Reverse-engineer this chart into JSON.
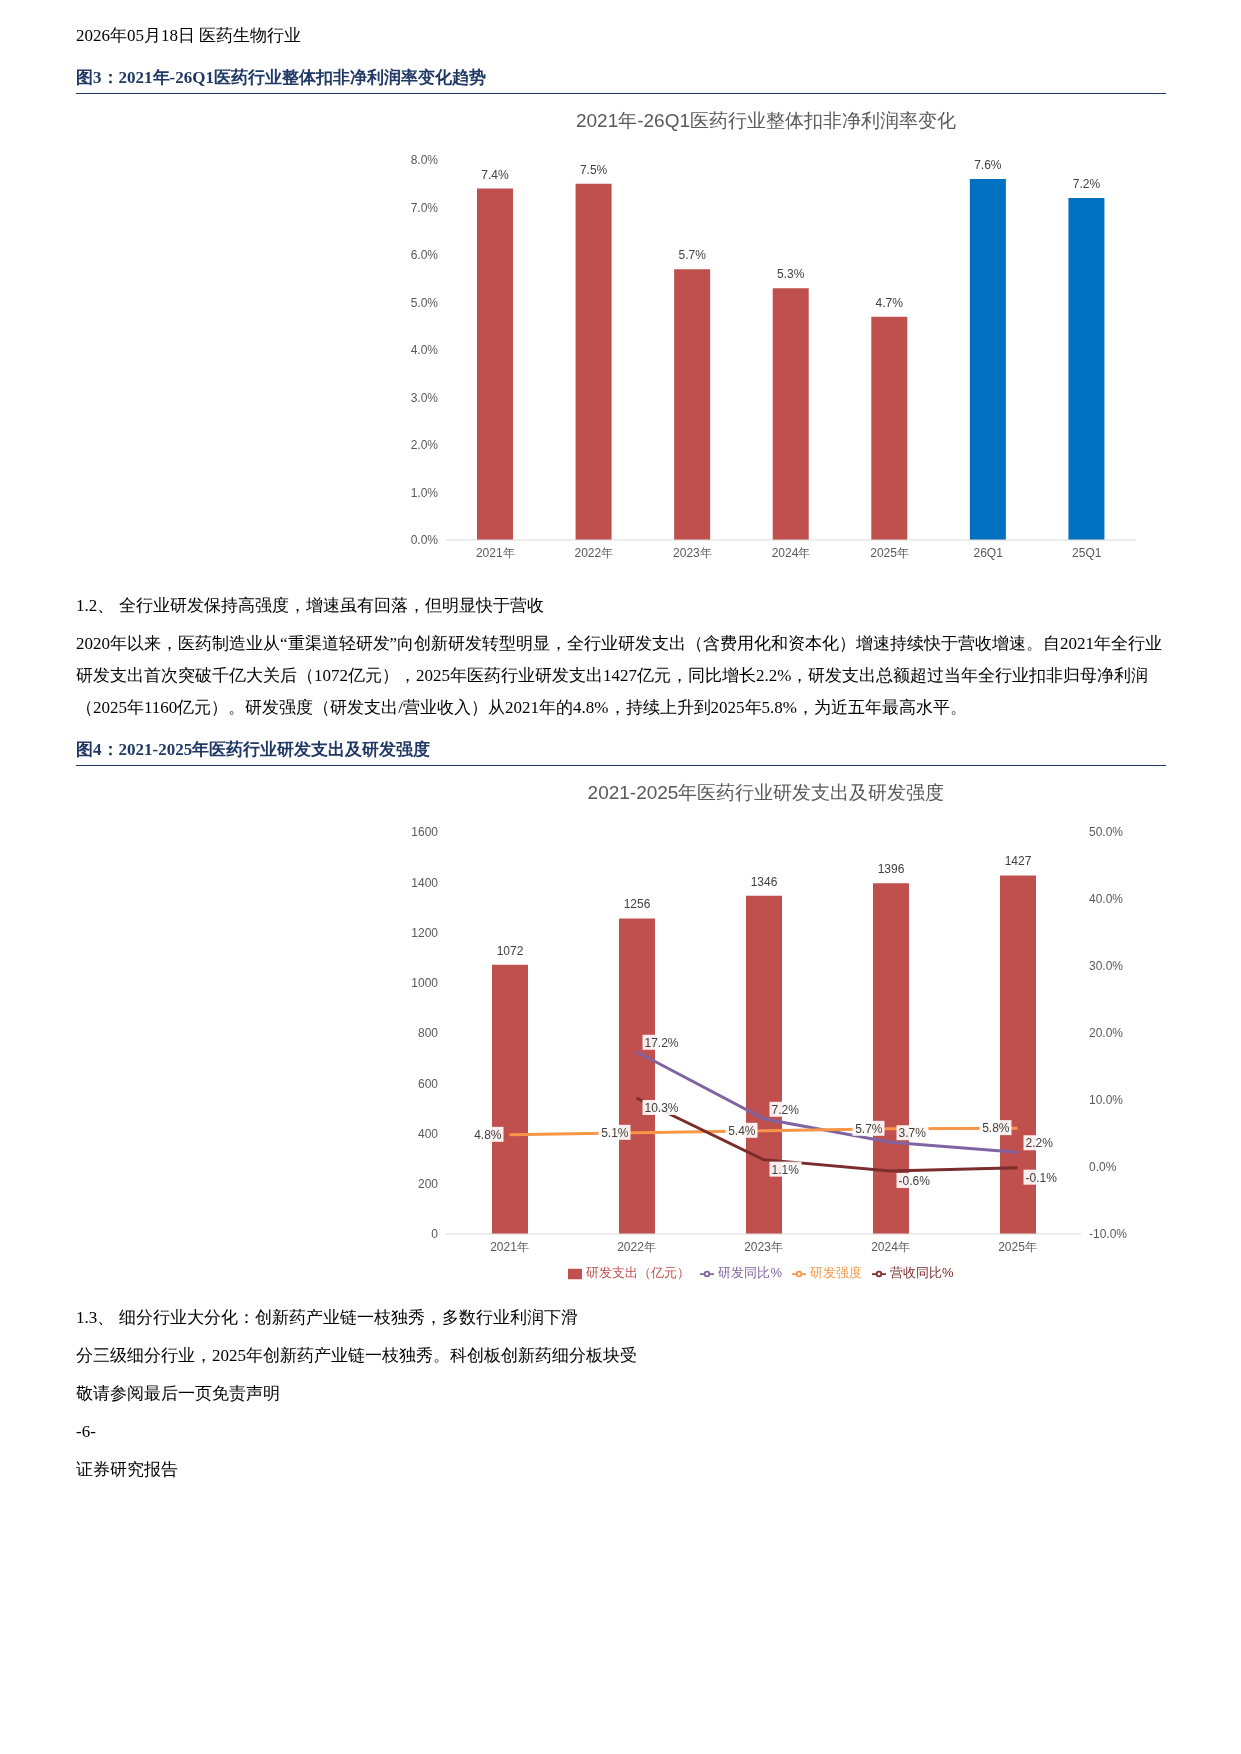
{
  "chart_data": [
    {
      "type": "other",
      "annotations": [
        "2026年05月18日 医药生物行业"
      ]
    },
    {
      "type": "bar",
      "title": "2021年-26Q1医药行业整体扣非净利润率变化",
      "annotations": [
        "图3：2021年-26Q1医药行业整体扣非净利润率变化趋势"
      ],
      "categories": [
        "2021年",
        "2022年",
        "2023年",
        "2024年",
        "2025年",
        "26Q1",
        "25Q1"
      ],
      "series": [
        {
          "values": [
            7.4,
            7.5,
            5.7,
            5.3,
            4.7,
            7.6,
            7.2
          ],
          "colors": [
            "#c0504d",
            "#c0504d",
            "#c0504d",
            "#c0504d",
            "#c0504d",
            "#0070c0",
            "#0070c0"
          ],
          "value_labels": [
            "7.4%",
            "7.5%",
            "5.7%",
            "5.3%",
            "4.7%",
            "7.6%",
            "7.2%"
          ]
        }
      ],
      "ylim": [
        0,
        8
      ],
      "yticks": [
        {
          "value": 0,
          "label": "0.0%"
        },
        {
          "value": 1,
          "label": "1.0%"
        },
        {
          "value": 2,
          "label": "2.0%"
        },
        {
          "value": 3,
          "label": "3.0%"
        },
        {
          "value": 4,
          "label": "4.0%"
        },
        {
          "value": 5,
          "label": "5.0%"
        },
        {
          "value": 6,
          "label": "6.0%"
        },
        {
          "value": 7,
          "label": "7.0%"
        },
        {
          "value": 8,
          "label": "8.0%"
        }
      ]
    },
    {
      "type": "other",
      "annotations": [
        "1.2、 全行业研发保持高强度，增速虽有回落，但明显快于营收",
        "2020年以来，医药制造业从“重渠道轻研发”向创新研发转型明显，全行业研发支出（含费用化和资本化）增速持续快于营收增速。自2021年全行业研发支出首次突破千亿大关后（1072亿元），2025年医药行业研发支出1427亿元，同比增长2.2%，研发支出总额超过当年全行业扣非归母净利润（2025年1160亿元）。研发强度（研发支出/营业收入）从2021年的4.8%，持续上升到2025年5.8%，为近五年最高水平。"
      ]
    },
    {
      "type": "bar",
      "title": "2021-2025年医药行业研发支出及研发强度",
      "annotations": [
        "图4：2021-2025年医药行业研发支出及研发强度"
      ],
      "categories": [
        "2021年",
        "2022年",
        "2023年",
        "2024年",
        "2025年"
      ],
      "series": [
        {
          "name": "研发支出（亿元）",
          "type": "bar",
          "color": "#c0504d",
          "values": [
            1072,
            1256,
            1346,
            1396,
            1427
          ],
          "value_labels": [
            "1072",
            "1256",
            "1346",
            "1396",
            "1427"
          ]
        },
        {
          "name": "研发同比%",
          "type": "line",
          "axis": "y2",
          "color": "#8064a2",
          "values": [
            null,
            17.2,
            7.2,
            3.7,
            2.2
          ],
          "value_labels": [
            null,
            "17.2%",
            "7.2%",
            "3.7%",
            "2.2%"
          ]
        },
        {
          "name": "研发强度",
          "type": "line",
          "axis": "y2",
          "color": "#f79646",
          "values": [
            4.8,
            5.1,
            5.4,
            5.7,
            5.8
          ],
          "value_labels": [
            "4.8%",
            "5.1%",
            "5.4%",
            "5.7%",
            "5.8%"
          ]
        },
        {
          "name": "营收同比%",
          "type": "line",
          "axis": "y2",
          "color": "#7b2c2c",
          "values": [
            null,
            10.3,
            1.1,
            -0.6,
            -0.1
          ],
          "value_labels": [
            null,
            "10.3%",
            "1.1%",
            "-0.6%",
            "-0.1%"
          ]
        }
      ],
      "ylim": [
        0,
        1600
      ],
      "yticks": [
        0,
        200,
        400,
        600,
        800,
        1000,
        1200,
        1400,
        1600
      ],
      "y2lim": [
        -10,
        50
      ],
      "y2ticks": [
        {
          "value": -10,
          "label": "-10.0%"
        },
        {
          "value": 0,
          "label": "0.0%"
        },
        {
          "value": 10,
          "label": "10.0%"
        },
        {
          "value": 20,
          "label": "20.0%"
        },
        {
          "value": 30,
          "label": "30.0%"
        },
        {
          "value": 40,
          "label": "40.0%"
        },
        {
          "value": 50,
          "label": "50.0%"
        }
      ],
      "legend": "bottom",
      "marker": "none"
    },
    {
      "type": "other",
      "annotations": [
        "1.3、 细分行业大分化：创新药产业链一枝独秀，多数行业利润下滑",
        "分三级细分行业，2025年创新药产业链一枝独秀。科创板创新药细分板块受",
        "敬请参阅最后一页免责声明",
        "-6-",
        "证券研究报告"
      ]
    }
  ]
}
